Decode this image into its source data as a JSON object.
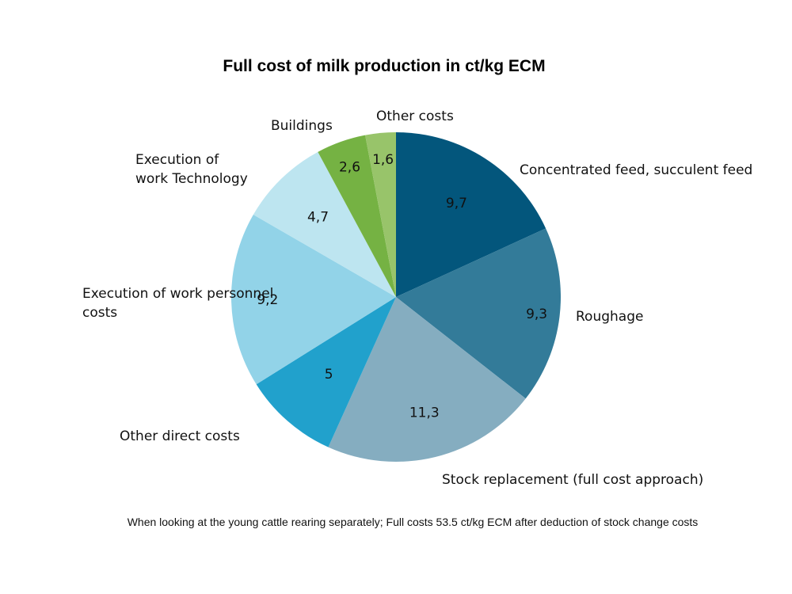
{
  "chart_data": {
    "type": "pie",
    "title": "Full cost of milk production in ct/kg ECM",
    "footnote": "When looking at the young cattle rearing separately; Full costs 53.5 ct/kg ECM after deduction of stock change costs",
    "slices": [
      {
        "label": "Concentrated feed, succulent feed",
        "value": 9.7,
        "display": "9,7",
        "color": "#03567c"
      },
      {
        "label": "Roughage",
        "value": 9.3,
        "display": "9,3",
        "color": "#337b99"
      },
      {
        "label": "Stock replacement (full cost approach)",
        "value": 11.3,
        "display": "11,3",
        "color": "#85adc0"
      },
      {
        "label": "Other direct costs",
        "value": 5,
        "display": "5",
        "color": "#21a1cc"
      },
      {
        "label": "Execution of work personnel costs",
        "value": 9.2,
        "display": "9,2",
        "color": "#92d3e8"
      },
      {
        "label": "Execution of work Technology",
        "value": 4.7,
        "display": "4,7",
        "color": "#bde5f0"
      },
      {
        "label": "Buildings",
        "value": 2.6,
        "display": "2,6",
        "color": "#75b243"
      },
      {
        "label": "Other costs",
        "value": 1.6,
        "display": "1,6",
        "color": "#98c46a"
      }
    ]
  }
}
